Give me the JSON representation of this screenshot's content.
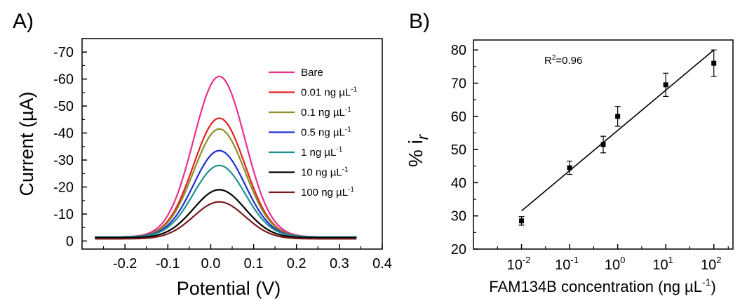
{
  "chart_data": [
    {
      "panel": "A)",
      "type": "line",
      "xlabel": "Potential (V)",
      "ylabel": "Current (µA)",
      "xlim": [
        -0.3,
        0.4
      ],
      "ylim": [
        3,
        -75
      ],
      "y_reversed": true,
      "xticks": [
        -0.2,
        -0.1,
        0.0,
        0.1,
        0.2,
        0.3,
        0.4
      ],
      "xtick_labels": [
        "-0.2",
        "-0.1",
        "0.0",
        "0.1",
        "0.2",
        "0.3",
        "0.4"
      ],
      "yticks": [
        0,
        -10,
        -20,
        -30,
        -40,
        -50,
        -60,
        -70
      ],
      "ytick_labels": [
        "0",
        "-10",
        "-20",
        "-30",
        "-40",
        "-50",
        "-60",
        "-70"
      ],
      "peak_potential": 0.02,
      "peak_width": 0.06,
      "x_range": [
        -0.27,
        0.34
      ],
      "legend_position": "upper-right",
      "series": [
        {
          "name": "Bare",
          "unit": "",
          "peak": -61,
          "baseline": -1.5,
          "color": "#e8308c"
        },
        {
          "name": "0.01 ng µL",
          "unit": "-1",
          "peak": -45.5,
          "baseline": -1.5,
          "color": "#e02020"
        },
        {
          "name": "0.1 ng µL",
          "unit": "-1",
          "peak": -41.5,
          "baseline": -1.5,
          "color": "#8f8f2a"
        },
        {
          "name": "0.5 ng µL",
          "unit": "-1",
          "peak": -33.5,
          "baseline": -1.5,
          "color": "#1f2fcf"
        },
        {
          "name": "1 ng µL",
          "unit": "-1",
          "peak": -28,
          "baseline": -1.5,
          "color": "#1f8f8f"
        },
        {
          "name": "10 ng µL",
          "unit": "-1",
          "peak": -19,
          "baseline": -1.2,
          "color": "#000000"
        },
        {
          "name": "100 ng µL",
          "unit": "-1",
          "peak": -14.5,
          "baseline": -0.8,
          "color": "#7a1c1c"
        }
      ]
    },
    {
      "panel": "B)",
      "type": "scatter",
      "xlabel": "FAM134B concentration (ng µL",
      "xlabel_sup": "-1",
      "xlabel_end": ")",
      "ylabel": "% i",
      "ylabel_sub": "r",
      "x_scale": "log",
      "xlim": [
        0.001,
        250
      ],
      "ylim": [
        20,
        83
      ],
      "xticks": [
        0.01,
        0.1,
        1,
        10,
        100
      ],
      "xtick_base": "10",
      "xtick_exps": [
        "-2",
        "-1",
        "0",
        "1",
        "2"
      ],
      "yticks": [
        20,
        30,
        40,
        50,
        60,
        70,
        80
      ],
      "ytick_labels": [
        "20",
        "30",
        "40",
        "50",
        "60",
        "70",
        "80"
      ],
      "annotation": "R",
      "annotation_sup": "2",
      "annotation_end": "=0.96",
      "points": [
        {
          "x": 0.01,
          "y": 28.5,
          "err": 1.3
        },
        {
          "x": 0.1,
          "y": 44.5,
          "err": 2.0
        },
        {
          "x": 0.5,
          "y": 51.5,
          "err": 2.5
        },
        {
          "x": 1,
          "y": 60,
          "err": 3.0
        },
        {
          "x": 10,
          "y": 69.5,
          "err": 3.5
        },
        {
          "x": 100,
          "y": 76,
          "err": 4.0
        }
      ],
      "fit_line": {
        "x": [
          0.01,
          100
        ],
        "y": [
          31.5,
          80
        ]
      }
    }
  ]
}
